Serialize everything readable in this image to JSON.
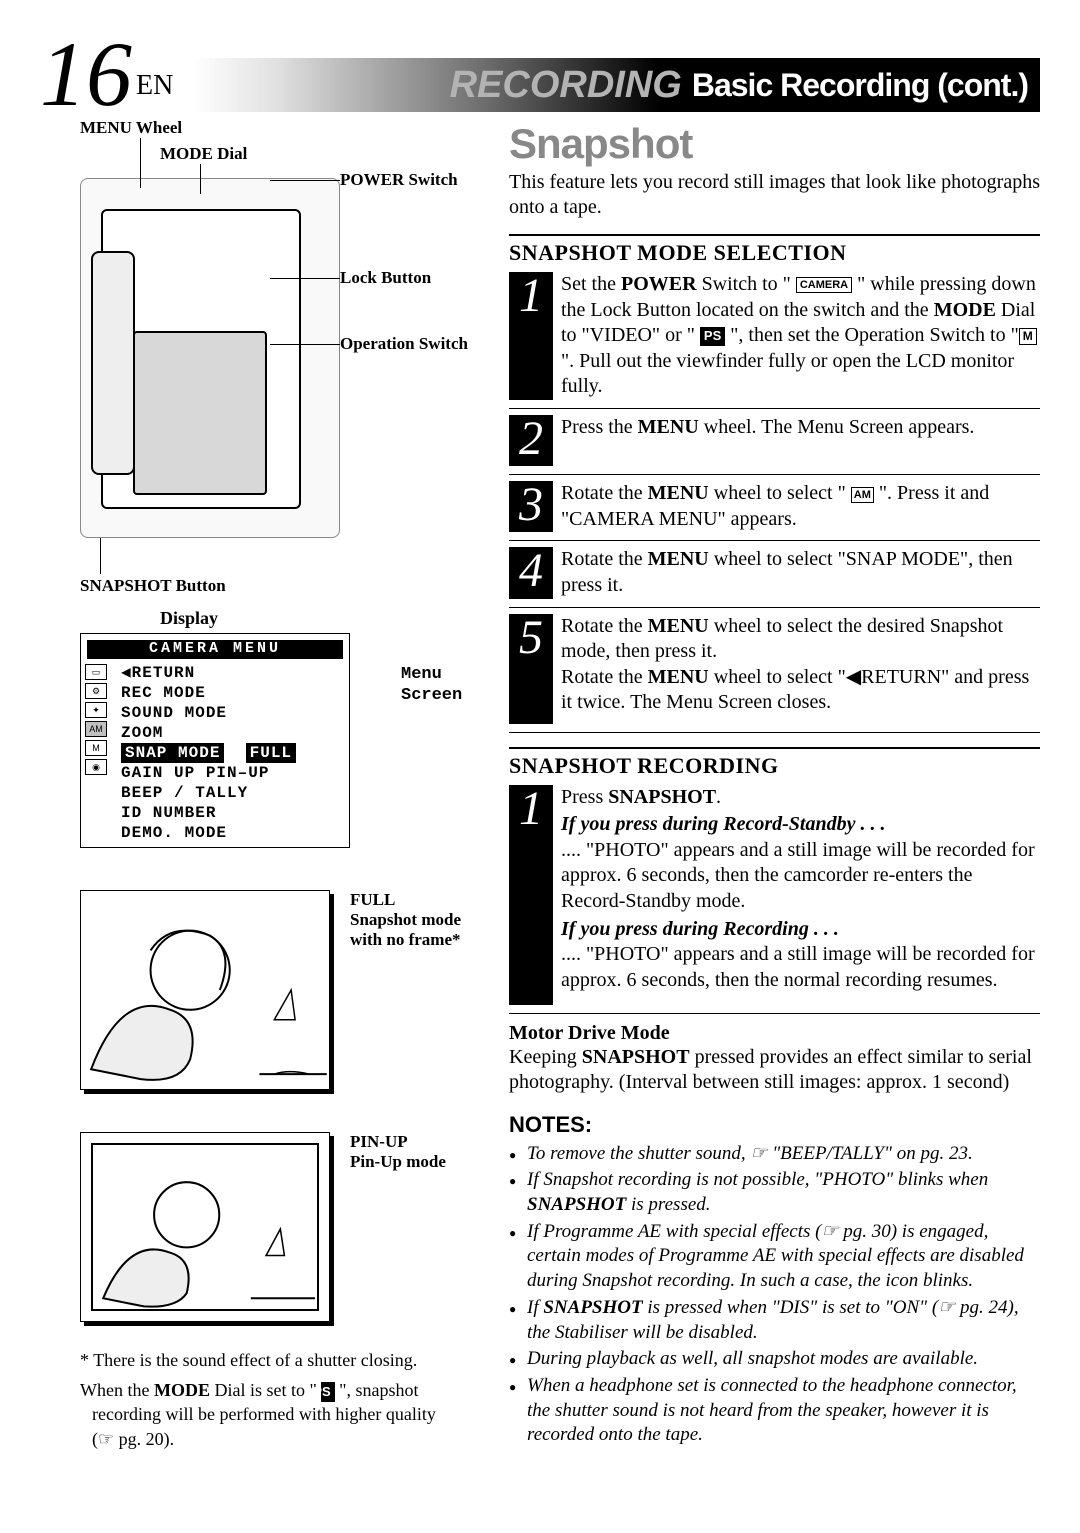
{
  "header": {
    "page_number": "16",
    "page_lang": "EN",
    "banner_em": "RECORDING",
    "banner_rest": "Basic Recording (cont.)"
  },
  "left": {
    "labels": {
      "menu_wheel": "MENU Wheel",
      "mode_dial": "MODE Dial",
      "power_switch": "POWER Switch",
      "lock_button": "Lock Button",
      "operation_switch": "Operation Switch",
      "snapshot_button": "SNAPSHOT Button",
      "display": "Display",
      "menu_screen": "Menu Screen"
    },
    "menu": {
      "title": "CAMERA  MENU",
      "lines": [
        "◀RETURN",
        "REC  MODE",
        "SOUND  MODE",
        "ZOOM",
        "GAIN  UP        PIN–UP",
        "BEEP / TALLY",
        "ID  NUMBER",
        "DEMO.  MODE"
      ],
      "highlight_left": "SNAP  MODE",
      "highlight_right": "FULL"
    },
    "illus": {
      "full_title": "FULL",
      "full_sub": "Snapshot mode with no frame*",
      "pinup_title": "PIN-UP",
      "pinup_sub": "Pin-Up mode"
    },
    "footnotes": {
      "a": "* There is the sound effect of a shutter closing.",
      "b_pre": "When the ",
      "b_bold": "MODE",
      "b_mid": " Dial is set to \" ",
      "b_post": " \", snapshot recording will be performed with higher quality (☞ pg. 20)."
    }
  },
  "right": {
    "title": "Snapshot",
    "intro": "This feature lets you record still images that look like photographs onto a tape.",
    "mode_selection": {
      "heading": "SNAPSHOT MODE SELECTION",
      "steps": {
        "s1_a": "Set the ",
        "s1_b": "POWER",
        "s1_c": " Switch to \" ",
        "s1_d": " \" while pressing down the Lock Button located on the switch and the ",
        "s1_e": "MODE",
        "s1_f": " Dial to \"VIDEO\" or \" ",
        "s1_g": " \", then set the Operation Switch to \"",
        "s1_h": "\". Pull out the viewfinder fully or open the LCD monitor fully.",
        "s2_a": "Press the ",
        "s2_b": "MENU",
        "s2_c": " wheel. The Menu Screen appears.",
        "s3_a": "Rotate the ",
        "s3_b": "MENU",
        "s3_c": " wheel to select \" ",
        "s3_d": " \".  Press it and \"CAMERA MENU\" appears.",
        "s4_a": "Rotate the ",
        "s4_b": "MENU",
        "s4_c": " wheel to select \"SNAP MODE\", then press it.",
        "s5_a": "Rotate the ",
        "s5_b": "MENU",
        "s5_c": " wheel to select the desired Snapshot mode, then press it.",
        "s5_d": "Rotate the ",
        "s5_e": "MENU",
        "s5_f": " wheel to select \"◀RETURN\" and press it twice. The Menu Screen closes."
      }
    },
    "recording": {
      "heading": "SNAPSHOT RECORDING",
      "s1_a": "Press ",
      "s1_b": "SNAPSHOT",
      "s1_c": ".",
      "if_standby_h": "If you press during Record-Standby . . .",
      "if_standby": ".... \"PHOTO\" appears and a still image will be recorded for approx. 6 seconds, then the camcorder re-enters the Record-Standby mode.",
      "if_rec_h": "If you press during Recording . . .",
      "if_rec": ".... \"PHOTO\" appears and a still image will be recorded for approx. 6 seconds, then the normal recording resumes.",
      "motor_h": "Motor Drive Mode",
      "motor_a": "Keeping ",
      "motor_b": "SNAPSHOT",
      "motor_c": " pressed provides an effect similar to serial photography. (Interval between still images: approx. 1 second)"
    },
    "notes_h": "NOTES:",
    "notes": [
      "To remove the shutter sound, ☞ \"BEEP/TALLY\" on pg. 23.",
      "If Snapshot recording is not possible, \"PHOTO\" blinks when <b>SNAPSHOT</b> is pressed.",
      "If Programme AE with special effects (☞ pg. 30) is engaged, certain modes of Programme AE with special effects are disabled during Snapshot recording. In such a case, the icon blinks.",
      "If <b>SNAPSHOT</b> is pressed when \"DIS\" is set to \"ON\" (☞ pg. 24), the Stabiliser will be disabled.",
      "During playback as well, all snapshot modes are available.",
      "When a headphone set is connected to the headphone connector, the shutter sound is not heard from the speaker, however it is recorded onto the tape."
    ]
  },
  "colors": {
    "accent_gray": "#888888",
    "text": "#000000",
    "bg": "#ffffff"
  }
}
